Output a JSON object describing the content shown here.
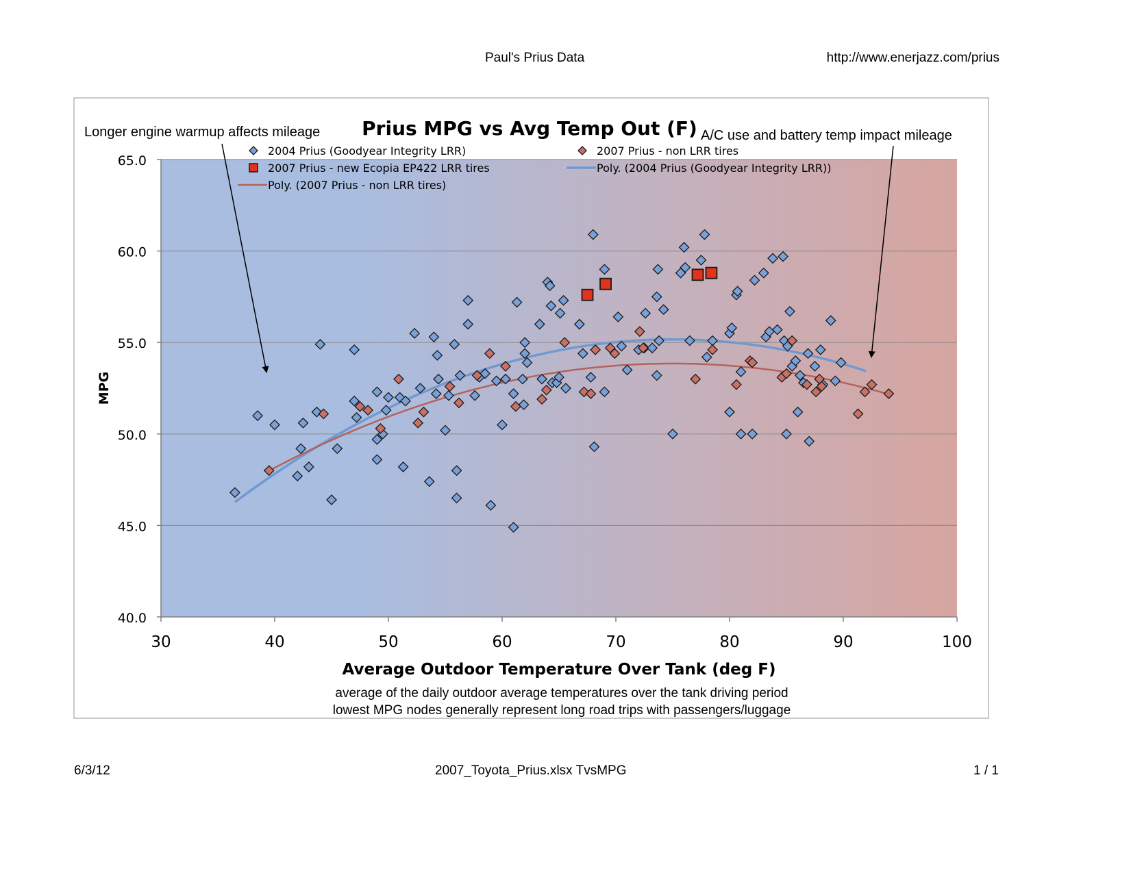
{
  "page": {
    "header_center": "Paul's Prius Data",
    "header_right": "http://www.enerjazz.com/prius",
    "footer_left": "6/3/12",
    "footer_center": "2007_Toyota_Prius.xlsx TvsMPG",
    "footer_right": "1 / 1"
  },
  "colors": {
    "blue_marker": "#7aa0d8",
    "red_marker": "#c97166",
    "ecopia_marker": "#e0341c",
    "blue_trend": "#7199d1",
    "red_trend": "#b5625b",
    "bg_left": "#a8bde0",
    "bg_right": "#d7a59f"
  },
  "chart_data": {
    "type": "scatter",
    "title": "Prius MPG vs Avg Temp Out (F)",
    "xlabel": "Average Outdoor Temperature Over Tank (deg F)",
    "ylabel": "MPG",
    "xlim": [
      30,
      100
    ],
    "ylim": [
      40,
      65
    ],
    "x_ticks": [
      "30",
      "40",
      "50",
      "60",
      "70",
      "80",
      "90",
      "100"
    ],
    "y_ticks": [
      "40.0",
      "45.0",
      "50.0",
      "55.0",
      "60.0",
      "65.0"
    ],
    "grid": true,
    "legend_position": "top",
    "subtitle_lines": [
      "average of the daily outdoor average temperatures over the tank driving period",
      "lowest MPG nodes generally represent long road trips with passengers/luggage"
    ],
    "annotations": [
      {
        "text": "Longer engine warmup affects mileage",
        "arrow_to": [
          39,
          53.4
        ]
      },
      {
        "text": "A/C use and battery temp impact mileage",
        "arrow_to": [
          92.3,
          54.2
        ]
      }
    ],
    "series": [
      {
        "name": "2004 Prius (Goodyear Integrity LRR)",
        "marker": "diamond",
        "points": [
          [
            36.5,
            46.8
          ],
          [
            38.5,
            51.0
          ],
          [
            40,
            50.5
          ],
          [
            42,
            47.7
          ],
          [
            42.3,
            49.2
          ],
          [
            42.5,
            50.6
          ],
          [
            43,
            48.2
          ],
          [
            43.7,
            51.2
          ],
          [
            44,
            54.9
          ],
          [
            45,
            46.4
          ],
          [
            45.5,
            49.2
          ],
          [
            47,
            54.6
          ],
          [
            47,
            51.8
          ],
          [
            47.2,
            50.9
          ],
          [
            49,
            52.3
          ],
          [
            49,
            49.7
          ],
          [
            49,
            48.6
          ],
          [
            49.5,
            50.0
          ],
          [
            49.8,
            51.3
          ],
          [
            50,
            52.0
          ],
          [
            51,
            52.0
          ],
          [
            51.3,
            48.2
          ],
          [
            51.5,
            51.8
          ],
          [
            52.3,
            55.5
          ],
          [
            52.8,
            52.5
          ],
          [
            53.6,
            47.4
          ],
          [
            54,
            55.3
          ],
          [
            54.2,
            52.2
          ],
          [
            54.3,
            54.3
          ],
          [
            54.4,
            53.0
          ],
          [
            55,
            50.2
          ],
          [
            55.3,
            52.1
          ],
          [
            55.8,
            54.9
          ],
          [
            56,
            48.0
          ],
          [
            56,
            46.5
          ],
          [
            56.3,
            53.2
          ],
          [
            57,
            56.0
          ],
          [
            57,
            57.3
          ],
          [
            57.6,
            52.1
          ],
          [
            58,
            53.1
          ],
          [
            58.5,
            53.3
          ],
          [
            59,
            46.1
          ],
          [
            59.5,
            52.9
          ],
          [
            60,
            50.5
          ],
          [
            60.3,
            53.0
          ],
          [
            61,
            44.9
          ],
          [
            61,
            52.2
          ],
          [
            61.3,
            57.2
          ],
          [
            61.8,
            53.0
          ],
          [
            61.9,
            51.6
          ],
          [
            62,
            55.0
          ],
          [
            62,
            54.4
          ],
          [
            62.2,
            53.9
          ],
          [
            63.3,
            56.0
          ],
          [
            63.5,
            53.0
          ],
          [
            64,
            58.3
          ],
          [
            64.2,
            58.1
          ],
          [
            64.3,
            57.0
          ],
          [
            64.4,
            52.8
          ],
          [
            64.8,
            52.8
          ],
          [
            65,
            53.1
          ],
          [
            65.1,
            56.6
          ],
          [
            65.4,
            57.3
          ],
          [
            65.6,
            52.5
          ],
          [
            66.8,
            56.0
          ],
          [
            67.1,
            54.4
          ],
          [
            67.8,
            53.1
          ],
          [
            68,
            60.9
          ],
          [
            68.1,
            49.3
          ],
          [
            69,
            52.3
          ],
          [
            69,
            59.0
          ],
          [
            70.2,
            56.4
          ],
          [
            70.5,
            54.8
          ],
          [
            71,
            53.5
          ],
          [
            72,
            54.6
          ],
          [
            72.5,
            54.7
          ],
          [
            72.6,
            56.6
          ],
          [
            73.2,
            54.7
          ],
          [
            73.6,
            53.2
          ],
          [
            73.6,
            57.5
          ],
          [
            73.7,
            59.0
          ],
          [
            73.8,
            55.1
          ],
          [
            74.2,
            56.8
          ],
          [
            75,
            50.0
          ],
          [
            75.7,
            58.8
          ],
          [
            76,
            60.2
          ],
          [
            76.1,
            59.1
          ],
          [
            76.5,
            55.1
          ],
          [
            77.5,
            59.5
          ],
          [
            77.8,
            60.9
          ],
          [
            78,
            54.2
          ],
          [
            78.5,
            55.1
          ],
          [
            80,
            51.2
          ],
          [
            80,
            55.5
          ],
          [
            80.2,
            55.8
          ],
          [
            80.6,
            57.6
          ],
          [
            80.7,
            57.8
          ],
          [
            81,
            53.4
          ],
          [
            81,
            50.0
          ],
          [
            82,
            50.0
          ],
          [
            82.2,
            58.4
          ],
          [
            83,
            58.8
          ],
          [
            83.2,
            55.3
          ],
          [
            83.5,
            55.6
          ],
          [
            83.8,
            59.6
          ],
          [
            84.2,
            55.7
          ],
          [
            84.7,
            59.7
          ],
          [
            84.8,
            55.1
          ],
          [
            85,
            50.0
          ],
          [
            85.1,
            54.8
          ],
          [
            85.3,
            56.7
          ],
          [
            85.5,
            53.7
          ],
          [
            85.8,
            54.0
          ],
          [
            86,
            51.2
          ],
          [
            86.2,
            53.2
          ],
          [
            86.5,
            52.8
          ],
          [
            86.9,
            54.4
          ],
          [
            87,
            49.6
          ],
          [
            87.5,
            53.7
          ],
          [
            88,
            54.6
          ],
          [
            88.2,
            52.7
          ],
          [
            88.9,
            56.2
          ],
          [
            89.3,
            52.9
          ],
          [
            89.8,
            53.9
          ]
        ]
      },
      {
        "name": "2007 Prius - non LRR tires",
        "marker": "diamond",
        "points": [
          [
            39.5,
            48.0
          ],
          [
            44.3,
            51.1
          ],
          [
            47.5,
            51.5
          ],
          [
            48.2,
            51.3
          ],
          [
            49.3,
            50.3
          ],
          [
            50.9,
            53.0
          ],
          [
            52.6,
            50.6
          ],
          [
            53.1,
            51.2
          ],
          [
            55.4,
            52.6
          ],
          [
            56.2,
            51.7
          ],
          [
            57.8,
            53.2
          ],
          [
            58.9,
            54.4
          ],
          [
            60.3,
            53.7
          ],
          [
            61.2,
            51.5
          ],
          [
            63.5,
            51.9
          ],
          [
            63.9,
            52.4
          ],
          [
            65.5,
            55.0
          ],
          [
            67.2,
            52.3
          ],
          [
            67.8,
            52.2
          ],
          [
            68.2,
            54.6
          ],
          [
            69.5,
            54.7
          ],
          [
            69.9,
            54.4
          ],
          [
            72.1,
            55.6
          ],
          [
            72.4,
            54.7
          ],
          [
            77,
            53.0
          ],
          [
            78.5,
            54.6
          ],
          [
            80.6,
            52.7
          ],
          [
            81.8,
            54.0
          ],
          [
            82,
            53.9
          ],
          [
            84.6,
            53.1
          ],
          [
            85,
            53.3
          ],
          [
            85.5,
            55.1
          ],
          [
            86.8,
            52.7
          ],
          [
            87.6,
            52.3
          ],
          [
            87.9,
            53.0
          ],
          [
            88.1,
            52.6
          ],
          [
            91.3,
            51.1
          ],
          [
            91.9,
            52.3
          ],
          [
            92.5,
            52.7
          ],
          [
            94,
            52.2
          ]
        ]
      },
      {
        "name": "2007 Prius - new Ecopia EP422 LRR tires",
        "marker": "square",
        "points": [
          [
            67.5,
            57.6
          ],
          [
            69.1,
            58.2
          ],
          [
            77.2,
            58.7
          ],
          [
            78.4,
            58.8
          ]
        ]
      },
      {
        "name": "Poly. (2004 Prius (Goodyear Integrity LRR))",
        "type": "trendline",
        "x_range": [
          36.5,
          92
        ],
        "coeffs": [
          55.17,
          0.0,
          -0.006
        ]
      },
      {
        "name": "Poly. (2007 Prius - non LRR tires)",
        "type": "trendline",
        "x_range": [
          39.5,
          94
        ],
        "coeffs": [
          53.85,
          0.0,
          -0.00465
        ]
      }
    ]
  }
}
